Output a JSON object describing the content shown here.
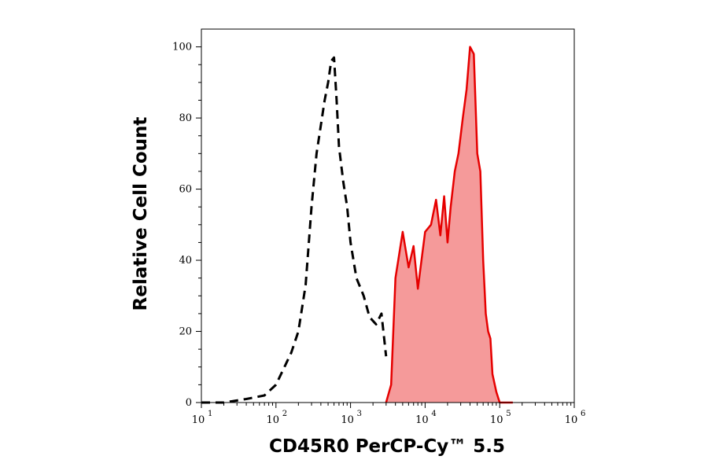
{
  "chart_data": {
    "type": "area",
    "xlabel": "CD45R0 PerCP-Cy™ 5.5",
    "ylabel": "Relative Cell Count",
    "x_scale": "log",
    "xlim": [
      10,
      1000000
    ],
    "ylim": [
      0,
      105
    ],
    "x_ticks": [
      {
        "base": "10",
        "exp": "1"
      },
      {
        "base": "10",
        "exp": "2"
      },
      {
        "base": "10",
        "exp": "3"
      },
      {
        "base": "10",
        "exp": "4"
      },
      {
        "base": "10",
        "exp": "5"
      },
      {
        "base": "10",
        "exp": "6"
      }
    ],
    "y_ticks": [
      "0",
      "20",
      "40",
      "60",
      "80",
      "100"
    ],
    "series": [
      {
        "style": "dashed",
        "color": "#000000",
        "filled": false,
        "x": [
          10,
          20,
          40,
          70,
          100,
          130,
          160,
          200,
          250,
          300,
          350,
          400,
          450,
          500,
          550,
          600,
          650,
          700,
          800,
          900,
          1000,
          1200,
          1500,
          1800,
          2200,
          2600,
          3000
        ],
        "y": [
          0,
          0,
          1,
          2,
          5,
          10,
          14,
          20,
          33,
          55,
          70,
          78,
          85,
          90,
          96,
          97,
          85,
          72,
          62,
          55,
          45,
          35,
          30,
          24,
          22,
          25,
          13
        ]
      },
      {
        "style": "solid",
        "color": "#e60000",
        "fill": "#f59a9a",
        "filled": true,
        "x": [
          3000,
          3500,
          4000,
          5000,
          6000,
          7000,
          8000,
          10000,
          12000,
          14000,
          16000,
          18000,
          20000,
          22000,
          25000,
          28000,
          32000,
          36000,
          40000,
          45000,
          50000,
          55000,
          60000,
          65000,
          70000,
          75000,
          80000,
          90000,
          100000,
          150000
        ],
        "y": [
          0,
          5,
          35,
          48,
          38,
          44,
          32,
          48,
          50,
          57,
          47,
          58,
          45,
          55,
          65,
          70,
          80,
          88,
          100,
          98,
          70,
          65,
          40,
          25,
          20,
          18,
          8,
          3,
          0,
          0
        ]
      }
    ]
  }
}
